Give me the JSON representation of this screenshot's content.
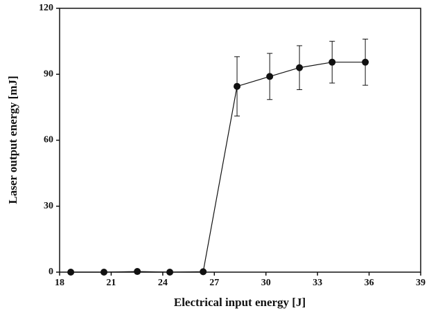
{
  "chart_data": {
    "type": "line",
    "x_label": "Electrical input energy [J]",
    "y_label": "Laser output energy [mJ]",
    "x": [
      18.65,
      20.58,
      22.52,
      24.41,
      26.35,
      28.32,
      30.22,
      31.95,
      33.85,
      35.78
    ],
    "series": [
      {
        "color": "#111111",
        "values": [
          0,
          0,
          0.3,
          0,
          0.2,
          84.5,
          89,
          93,
          95.5,
          95.5
        ],
        "errors": [
          null,
          null,
          null,
          null,
          null,
          13.5,
          10.5,
          10,
          9.5,
          10.5
        ]
      }
    ],
    "xlim": [
      18,
      39
    ],
    "xticks": [
      18,
      21,
      24,
      27,
      30,
      33,
      36,
      39
    ],
    "ylim": [
      0,
      120
    ],
    "yticks": [
      0,
      30,
      60,
      90,
      120
    ]
  }
}
